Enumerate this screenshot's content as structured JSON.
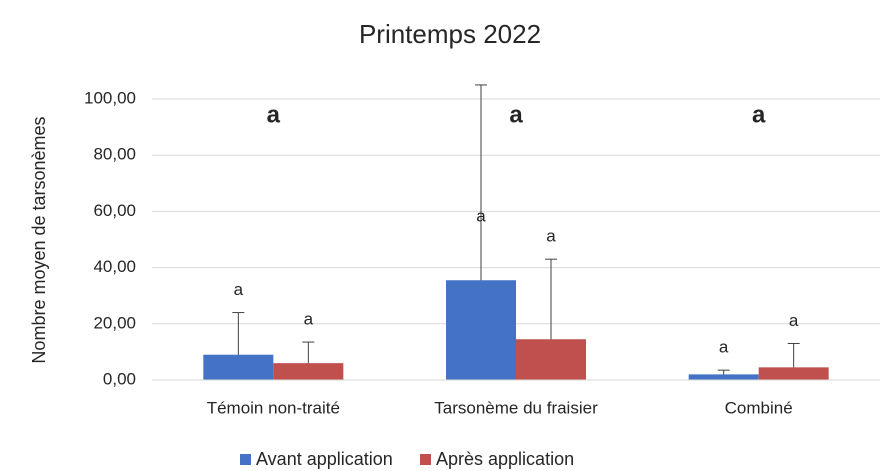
{
  "chart_data": {
    "type": "bar",
    "title": "Printemps 2022",
    "y_label": "Nombre moyen de tarsonèmes",
    "categories": [
      "Témoin non-traité",
      "Tarsonème du fraisier",
      "Combiné"
    ],
    "group_letters": [
      "a",
      "a",
      "a"
    ],
    "series": [
      {
        "name": "Avant application",
        "color": "#4472c4",
        "values": [
          9,
          35.5,
          2
        ],
        "errors": [
          15,
          69.5,
          1.5
        ],
        "letters": [
          "a",
          "a",
          "a"
        ]
      },
      {
        "name": "Après application",
        "color": "#c0504d",
        "values": [
          6,
          14.5,
          4.5
        ],
        "errors": [
          7.5,
          28.5,
          8.5
        ],
        "letters": [
          "a",
          "a",
          "a"
        ]
      }
    ],
    "ylim": [
      0,
      100
    ],
    "yticks": [
      {
        "value": 0,
        "label": "0,00"
      },
      {
        "value": 20,
        "label": "20,00"
      },
      {
        "value": 40,
        "label": "40,00"
      },
      {
        "value": 60,
        "label": "60,00"
      },
      {
        "value": 80,
        "label": "80,00"
      },
      {
        "value": 100,
        "label": "100,00"
      }
    ],
    "grid": true,
    "legend": "bottom"
  }
}
